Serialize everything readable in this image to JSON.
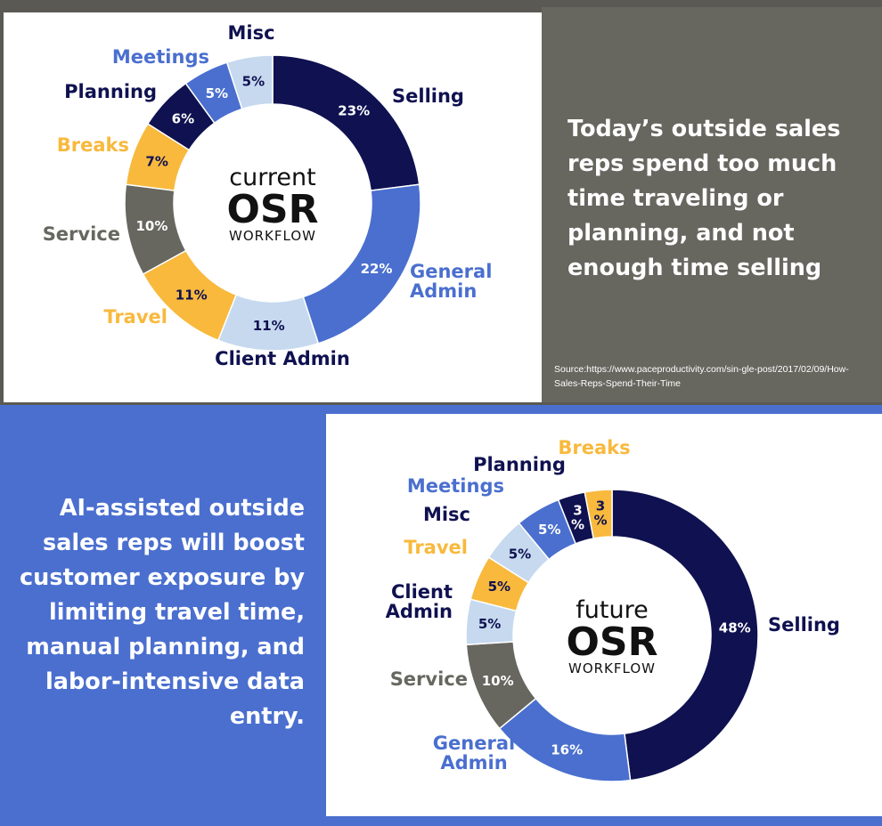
{
  "top_panel": {
    "headline": "Today’s outside sales reps spend too much time traveling or planning, and not enough time selling",
    "source": "Source:https://www.paceproductivity.com/sin-gle-post/2017/02/09/How-Sales-Reps-Spend-Their-Time"
  },
  "bottom_panel": {
    "headline": "AI-assisted outside sales reps will boost customer exposure by limiting travel time, manual planning, and labor-intensive data entry."
  },
  "colors": {
    "selling": "#0f1150",
    "general_admin": "#4a6fcf",
    "client_admin": "#c6d9ef",
    "travel": "#f8b93d",
    "service": "#676760",
    "breaks": "#f8b93d",
    "planning": "#0f1150",
    "meetings": "#4a6fcf",
    "misc": "#c6d9ef"
  },
  "chart_data": [
    {
      "type": "pie",
      "center": {
        "line1": "current",
        "line2": "OSR",
        "line3": "WORKFLOW"
      },
      "slices": [
        {
          "key": "selling",
          "label": "Selling",
          "value": 23,
          "value_label": "23%"
        },
        {
          "key": "general_admin",
          "label": "General Admin",
          "label_lines": [
            "General",
            "Admin"
          ],
          "value": 22,
          "value_label": "22%"
        },
        {
          "key": "client_admin",
          "label": "Client Admin",
          "value": 11,
          "value_label": "11%"
        },
        {
          "key": "travel",
          "label": "Travel",
          "value": 11,
          "value_label": "11%"
        },
        {
          "key": "service",
          "label": "Service",
          "value": 10,
          "value_label": "10%"
        },
        {
          "key": "breaks",
          "label": "Breaks",
          "value": 7,
          "value_label": "7%"
        },
        {
          "key": "planning",
          "label": "Planning",
          "value": 6,
          "value_label": "6%"
        },
        {
          "key": "meetings",
          "label": "Meetings",
          "value": 5,
          "value_label": "5%"
        },
        {
          "key": "misc",
          "label": "Misc",
          "value": 5,
          "value_label": "5%"
        }
      ]
    },
    {
      "type": "pie",
      "center": {
        "line1": "future",
        "line2": "OSR",
        "line3": "WORKFLOW"
      },
      "slices": [
        {
          "key": "selling",
          "label": "Selling",
          "value": 48,
          "value_label": "48%"
        },
        {
          "key": "general_admin",
          "label": "General Admin",
          "label_lines": [
            "General",
            "Admin"
          ],
          "value": 16,
          "value_label": "16%"
        },
        {
          "key": "service",
          "label": "Service",
          "value": 10,
          "value_label": "10%"
        },
        {
          "key": "client_admin",
          "label": "Client Admin",
          "label_lines": [
            "Client",
            "Admin"
          ],
          "value": 5,
          "value_label": "5%"
        },
        {
          "key": "travel",
          "label": "Travel",
          "value": 5,
          "value_label": "5%"
        },
        {
          "key": "misc",
          "label": "Misc",
          "value": 5,
          "value_label": "5%"
        },
        {
          "key": "meetings",
          "label": "Meetings",
          "value": 5,
          "value_label": "5%"
        },
        {
          "key": "planning",
          "label": "Planning",
          "value": 3,
          "value_label": "3%",
          "value_lines": [
            "3",
            "%"
          ]
        },
        {
          "key": "breaks",
          "label": "Breaks",
          "value": 3,
          "value_label": "3%",
          "value_lines": [
            "3",
            "%"
          ]
        }
      ]
    }
  ]
}
